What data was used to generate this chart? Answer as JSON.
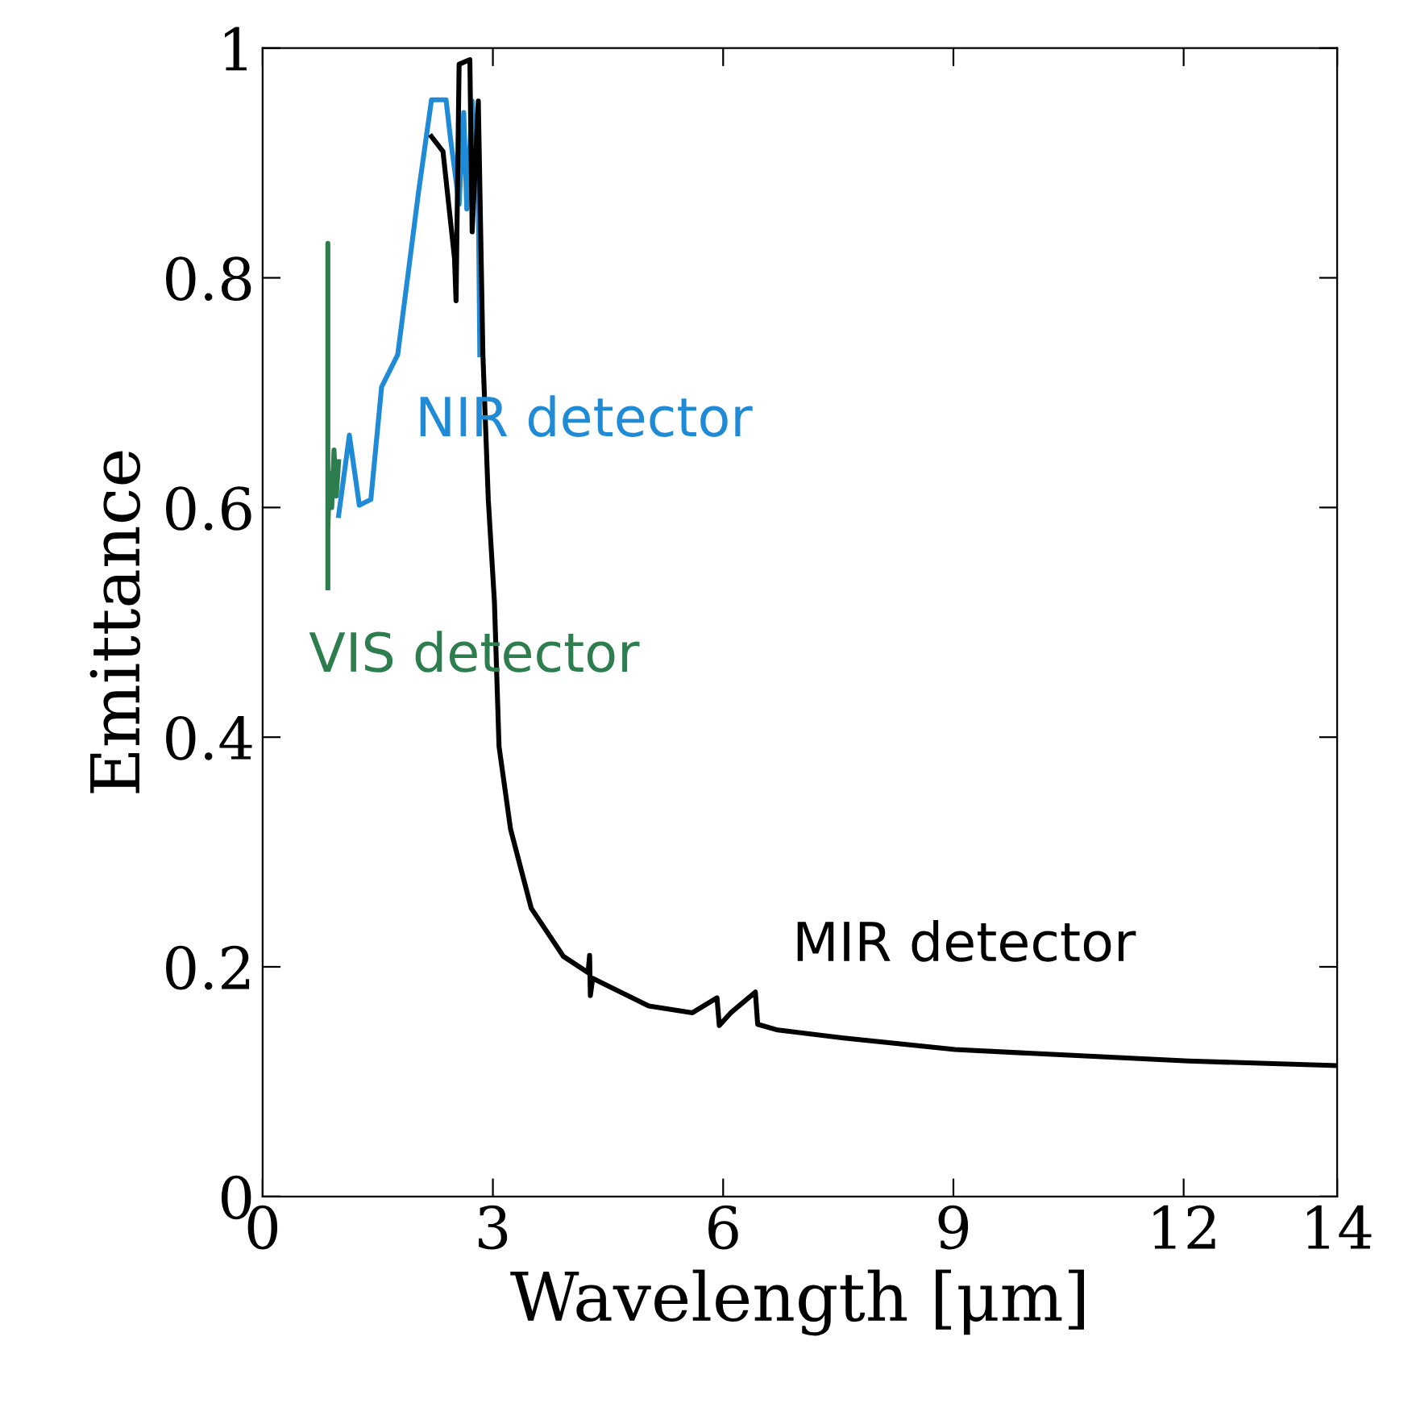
{
  "chart_data": {
    "type": "line",
    "xlabel": "Wavelength [μm]",
    "ylabel": "Emittance",
    "xlim": [
      0,
      14
    ],
    "ylim": [
      0,
      1
    ],
    "xticks": [
      0,
      3,
      6,
      9,
      12,
      14
    ],
    "yticks": [
      0,
      0.2,
      0.4,
      0.6,
      0.8,
      1
    ],
    "grid": false,
    "legend": false,
    "marker": "none",
    "line_style": "solid",
    "series": [
      {
        "name": "VIS detector",
        "color": "#2e7d4f",
        "x": [
          0.85,
          0.85,
          0.85,
          0.87,
          0.9,
          0.93,
          0.96,
          0.99
        ],
        "values": [
          0.53,
          0.83,
          0.58,
          0.63,
          0.6,
          0.65,
          0.61,
          0.64
        ]
      },
      {
        "name": "NIR detector",
        "color": "#1f8ad6",
        "x": [
          0.99,
          1.13,
          1.26,
          1.41,
          1.55,
          1.76,
          2.03,
          2.2,
          2.39,
          2.45,
          2.56,
          2.62,
          2.66,
          2.73,
          2.81,
          2.83
        ],
        "values": [
          0.593,
          0.663,
          0.602,
          0.607,
          0.705,
          0.733,
          0.874,
          0.955,
          0.955,
          0.92,
          0.864,
          0.944,
          0.86,
          0.954,
          0.874,
          0.733
        ]
      },
      {
        "name": "MIR detector",
        "color": "#000000",
        "x": [
          2.2,
          2.35,
          2.5,
          2.52,
          2.56,
          2.7,
          2.73,
          2.81,
          2.87,
          2.94,
          3.02,
          3.08,
          3.23,
          3.5,
          3.92,
          4.24,
          4.26,
          4.27,
          4.3,
          5.03,
          5.6,
          5.92,
          5.95,
          6.1,
          6.42,
          6.45,
          6.71,
          7.57,
          9.02,
          12.06,
          14.0
        ],
        "values": [
          0.923,
          0.91,
          0.817,
          0.78,
          0.986,
          0.99,
          0.84,
          0.954,
          0.733,
          0.607,
          0.518,
          0.392,
          0.32,
          0.251,
          0.209,
          0.195,
          0.21,
          0.175,
          0.19,
          0.166,
          0.16,
          0.173,
          0.149,
          0.16,
          0.178,
          0.15,
          0.145,
          0.138,
          0.128,
          0.118,
          0.114
        ]
      }
    ]
  }
}
